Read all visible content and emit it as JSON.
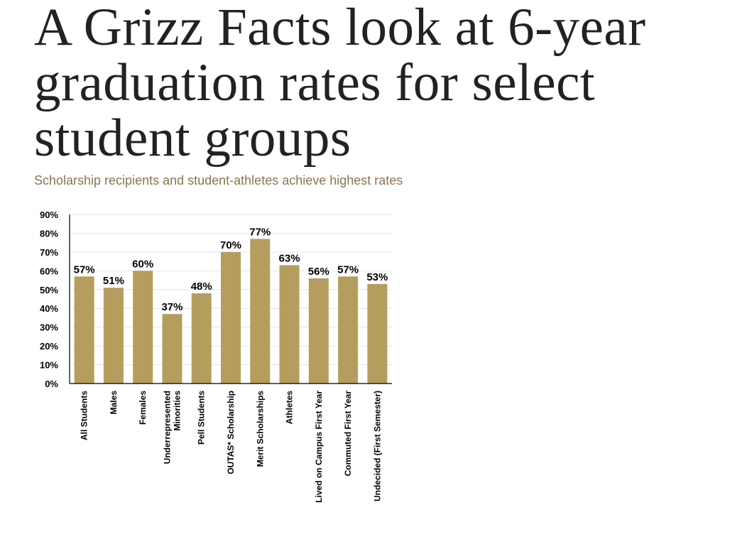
{
  "headline": "A Grizz Facts look at 6-year graduation rates for select student groups",
  "subtitle": "Scholarship recipients and student-athletes achieve highest rates",
  "colors": {
    "bar": "#b59d5e",
    "headline": "#222222",
    "subtitle": "#8a7650"
  },
  "chart_data": {
    "type": "bar",
    "categories": [
      "All Students",
      "Males",
      "Females",
      "Underrepresented Minorities",
      "Pell Students",
      "OUTAS* Scholarship",
      "Merit Scholarships",
      "Athletes",
      "Lived on Campus First Year",
      "Commuted First Year",
      "Undecided (First Semester)"
    ],
    "values": [
      57,
      51,
      60,
      37,
      48,
      70,
      77,
      63,
      56,
      57,
      53
    ],
    "data_labels": [
      "57%",
      "51%",
      "60%",
      "37%",
      "48%",
      "70%",
      "77%",
      "63%",
      "56%",
      "57%",
      "53%"
    ],
    "y_ticks": [
      "0%",
      "10%",
      "20%",
      "30%",
      "40%",
      "50%",
      "60%",
      "70%",
      "80%",
      "90%"
    ],
    "ylim": [
      0,
      90
    ],
    "grid": true,
    "title": "",
    "xlabel": "",
    "ylabel": ""
  }
}
